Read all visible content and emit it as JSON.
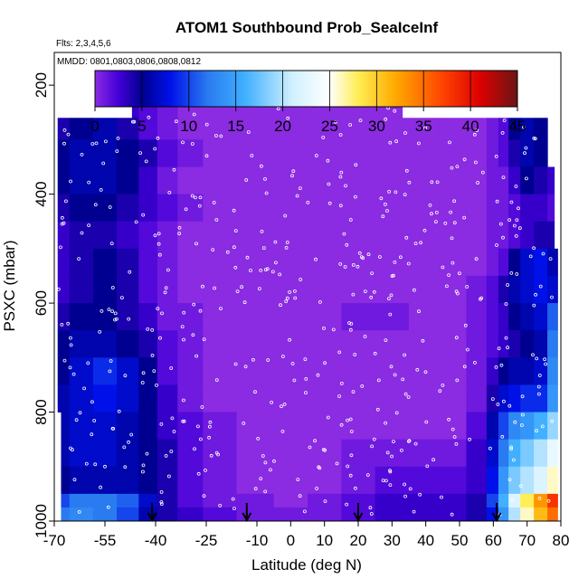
{
  "chart_data": {
    "type": "heatmap",
    "title": "ATOM1 Southbound Prob_SeaIceInf",
    "annotations": {
      "flights": "Flts: 2,3,4,5,6",
      "dates": "MMDD: 0801,0803,0806,0808,0812"
    },
    "xlabel": "Latitude (deg N)",
    "ylabel": "PSXC (mbar)",
    "xlim": [
      -70,
      80
    ],
    "ylim": [
      1000,
      140
    ],
    "y_reversed": true,
    "grid": false,
    "xticks": [
      -70,
      -55,
      -40,
      -25,
      -10,
      0,
      10,
      20,
      30,
      40,
      50,
      60,
      70,
      80
    ],
    "xtick_labels": [
      "-70",
      "-55",
      "-40",
      "-25",
      "-10",
      "0",
      "10",
      "20",
      "30",
      "40",
      "50",
      "60",
      "70",
      "80"
    ],
    "yticks": [
      200,
      400,
      600,
      800,
      1000
    ],
    "ytick_labels": [
      "200",
      "400",
      "600",
      "800",
      "1000"
    ],
    "colorbar": {
      "range": [
        0,
        45
      ],
      "ticks": [
        0,
        5,
        10,
        15,
        20,
        25,
        30,
        35,
        40,
        45
      ],
      "tick_labels": [
        "0",
        "5",
        "10",
        "15",
        "20",
        "25",
        "30",
        "35",
        "40",
        "45"
      ],
      "placement": "top, inside plot",
      "stops": [
        {
          "value": 0,
          "color": "#8b2be2"
        },
        {
          "value": 2.5,
          "color": "#4400d8"
        },
        {
          "value": 5,
          "color": "#000090"
        },
        {
          "value": 8,
          "color": "#0010e8"
        },
        {
          "value": 12,
          "color": "#2a7af0"
        },
        {
          "value": 16,
          "color": "#40b0ff"
        },
        {
          "value": 21,
          "color": "#d0f0ff"
        },
        {
          "value": 25,
          "color": "#ffffff"
        },
        {
          "value": 28,
          "color": "#ffee55"
        },
        {
          "value": 32,
          "color": "#ffaa00"
        },
        {
          "value": 37,
          "color": "#ff4400"
        },
        {
          "value": 41,
          "color": "#dd0000"
        },
        {
          "value": 45,
          "color": "#6a1515"
        }
      ]
    },
    "profile_markers_lat": [
      -41,
      -13,
      20,
      61
    ],
    "pressure_bins": [
      [
        220,
        260
      ],
      [
        260,
        300
      ],
      [
        300,
        350
      ],
      [
        350,
        400
      ],
      [
        400,
        450
      ],
      [
        450,
        500
      ],
      [
        500,
        550
      ],
      [
        550,
        600
      ],
      [
        600,
        650
      ],
      [
        650,
        700
      ],
      [
        700,
        750
      ],
      [
        750,
        800
      ],
      [
        800,
        850
      ],
      [
        850,
        900
      ],
      [
        900,
        950
      ],
      [
        950,
        975
      ],
      [
        975,
        1000
      ]
    ],
    "lat_profile": {
      "lat": [
        -69,
        -62,
        -55,
        -48,
        -42,
        -37,
        -30,
        -22,
        -10,
        0,
        10,
        20,
        30,
        40,
        48,
        56,
        60,
        63,
        66,
        70,
        74,
        78
      ],
      "rows": [
        [
          3,
          4,
          5,
          3,
          2,
          1,
          0,
          0,
          0,
          0,
          0,
          0,
          0,
          0,
          0,
          0,
          1,
          2,
          6,
          7,
          6,
          4
        ],
        [
          4,
          5,
          6,
          4,
          2,
          1,
          0,
          0,
          0,
          0,
          0,
          0,
          0,
          0,
          0,
          0,
          1,
          2,
          5,
          6,
          5,
          3
        ],
        [
          5,
          6,
          6,
          5,
          4,
          2,
          1,
          0,
          0,
          0,
          0,
          0,
          0,
          0,
          0,
          0,
          1,
          2,
          4,
          6,
          5,
          3
        ],
        [
          5,
          6,
          6,
          5,
          3,
          1,
          0,
          0,
          0,
          0,
          0,
          0,
          0,
          0,
          0,
          0,
          1,
          1,
          3,
          5,
          4,
          3
        ],
        [
          4,
          5,
          5,
          4,
          3,
          2,
          1,
          0,
          0,
          0,
          0,
          0,
          0,
          0,
          0,
          0,
          1,
          1,
          2,
          3,
          3,
          2
        ],
        [
          3,
          4,
          4,
          3,
          2,
          1,
          0,
          0,
          0,
          0,
          0,
          0,
          0,
          0,
          0,
          0,
          1,
          1,
          2,
          3,
          4,
          4
        ],
        [
          3,
          4,
          5,
          4,
          2,
          1,
          0,
          0,
          0,
          0,
          0,
          0,
          0,
          0,
          0,
          0,
          1,
          2,
          5,
          7,
          8,
          6
        ],
        [
          3,
          4,
          5,
          4,
          2,
          1,
          0,
          0,
          0,
          0,
          0,
          0,
          0,
          0,
          0,
          1,
          2,
          4,
          6,
          7,
          8,
          7
        ],
        [
          4,
          5,
          5,
          4,
          3,
          1,
          1,
          0,
          0,
          0,
          0,
          1,
          1,
          0,
          0,
          1,
          2,
          3,
          5,
          6,
          7,
          11
        ],
        [
          5,
          6,
          6,
          5,
          4,
          2,
          1,
          0,
          0,
          0,
          0,
          0,
          0,
          0,
          0,
          1,
          2,
          3,
          4,
          5,
          6,
          12
        ],
        [
          5,
          7,
          9,
          7,
          5,
          2,
          1,
          0,
          0,
          0,
          0,
          0,
          0,
          0,
          0,
          1,
          3,
          5,
          6,
          6,
          7,
          13
        ],
        [
          6,
          7,
          8,
          7,
          5,
          3,
          1,
          0,
          0,
          0,
          0,
          0,
          0,
          0,
          0,
          1,
          4,
          7,
          8,
          9,
          9,
          14
        ],
        [
          6,
          7,
          7,
          6,
          5,
          3,
          2,
          1,
          0,
          0,
          0,
          0,
          0,
          0,
          0,
          2,
          6,
          10,
          13,
          14,
          16,
          19
        ],
        [
          6,
          7,
          7,
          6,
          5,
          4,
          2,
          1,
          0,
          0,
          0,
          1,
          1,
          1,
          1,
          3,
          7,
          12,
          16,
          18,
          20,
          23
        ],
        [
          5,
          6,
          6,
          6,
          5,
          4,
          2,
          1,
          0,
          0,
          0,
          1,
          2,
          2,
          2,
          3,
          8,
          14,
          18,
          20,
          22,
          26
        ],
        [
          10,
          12,
          12,
          11,
          7,
          4,
          2,
          1,
          1,
          0,
          1,
          2,
          3,
          3,
          3,
          4,
          10,
          16,
          22,
          28,
          33,
          38
        ],
        [
          12,
          13,
          12,
          10,
          6,
          4,
          3,
          2,
          1,
          1,
          1,
          2,
          3,
          3,
          3,
          4,
          8,
          14,
          20,
          26,
          31,
          35
        ]
      ]
    }
  }
}
